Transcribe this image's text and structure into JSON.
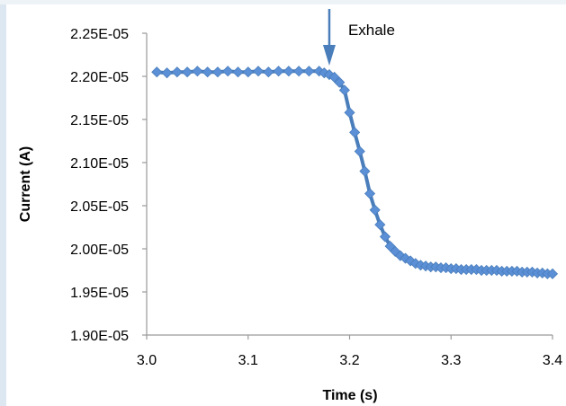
{
  "chart_data": {
    "type": "line",
    "xlabel": "Time (s)",
    "ylabel": "Current (A)",
    "xlim": [
      3.0,
      3.4
    ],
    "ylim": [
      1.9e-05,
      2.25e-05
    ],
    "x_ticks": [
      "3.0",
      "3.1",
      "3.2",
      "3.3",
      "3.4"
    ],
    "y_ticks": [
      "1.90E-05",
      "1.95E-05",
      "2.00E-05",
      "2.05E-05",
      "2.10E-05",
      "2.15E-05",
      "2.20E-05",
      "2.25E-05"
    ],
    "grid": false,
    "line_color": "#4a7ebb",
    "marker_color": "#5b8fd6",
    "marker": "diamond",
    "annotation": {
      "text": "Exhale",
      "x": 3.18
    },
    "series": [
      {
        "x": [
          3.01,
          3.02,
          3.03,
          3.04,
          3.05,
          3.06,
          3.07,
          3.08,
          3.09,
          3.1,
          3.11,
          3.12,
          3.13,
          3.14,
          3.15,
          3.16,
          3.17,
          3.175,
          3.18,
          3.185,
          3.19,
          3.195,
          3.2,
          3.205,
          3.21,
          3.215,
          3.22,
          3.225,
          3.23,
          3.235,
          3.24,
          3.245,
          3.25,
          3.255,
          3.26,
          3.265,
          3.27,
          3.275,
          3.28,
          3.285,
          3.29,
          3.295,
          3.3,
          3.305,
          3.31,
          3.315,
          3.32,
          3.325,
          3.33,
          3.335,
          3.34,
          3.345,
          3.35,
          3.355,
          3.36,
          3.365,
          3.37,
          3.375,
          3.38,
          3.385,
          3.39,
          3.395,
          3.4
        ],
        "y": [
          2.205e-05,
          2.204e-05,
          2.205e-05,
          2.205e-05,
          2.206e-05,
          2.205e-05,
          2.205e-05,
          2.206e-05,
          2.205e-05,
          2.205e-05,
          2.206e-05,
          2.205e-05,
          2.206e-05,
          2.206e-05,
          2.206e-05,
          2.206e-05,
          2.206e-05,
          2.204e-05,
          2.202e-05,
          2.199e-05,
          2.193e-05,
          2.184e-05,
          2.158e-05,
          2.135e-05,
          2.113e-05,
          2.09e-05,
          2.064e-05,
          2.045e-05,
          2.028e-05,
          2.014e-05,
          2.003e-05,
          1.997e-05,
          1.992e-05,
          1.989e-05,
          1.986e-05,
          1.983e-05,
          1.981e-05,
          1.98e-05,
          1.979e-05,
          1.979e-05,
          1.978e-05,
          1.978e-05,
          1.977e-05,
          1.977e-05,
          1.976e-05,
          1.976e-05,
          1.976e-05,
          1.976e-05,
          1.975e-05,
          1.975e-05,
          1.975e-05,
          1.975e-05,
          1.974e-05,
          1.974e-05,
          1.974e-05,
          1.974e-05,
          1.973e-05,
          1.973e-05,
          1.973e-05,
          1.972e-05,
          1.972e-05,
          1.971e-05,
          1.971e-05
        ]
      }
    ]
  }
}
